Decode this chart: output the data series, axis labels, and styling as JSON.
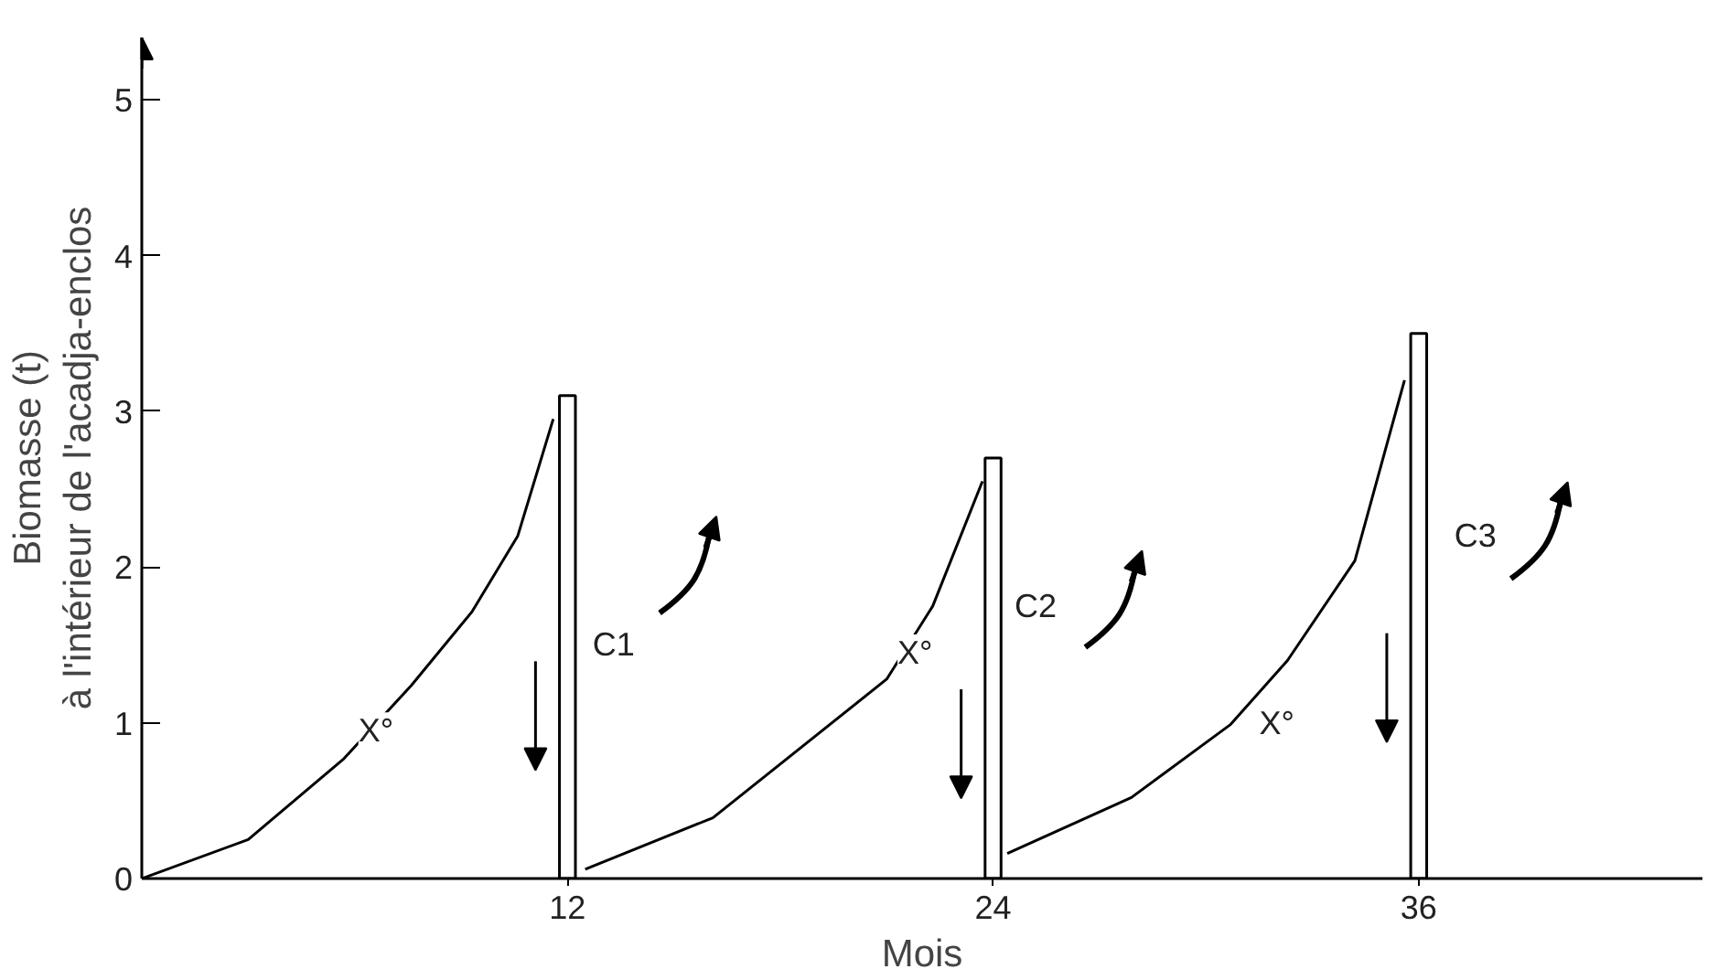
{
  "chart_data": {
    "type": "line",
    "xlabel": "Mois",
    "ylabel": "Biomasse (t)\nà l'intérieur de l'acadja-enclos",
    "series": [
      {
        "color": "#000000",
        "x": [
          0,
          3,
          5.7,
          7.6,
          9.3,
          10.6,
          11.6
        ],
        "values": [
          0,
          0.25,
          0.77,
          1.24,
          1.71,
          2.2,
          2.95
        ]
      },
      {
        "color": "#000000",
        "x": [
          12.5,
          16.1,
          21.0,
          22.3,
          23.7
        ],
        "values": [
          0.06,
          0.39,
          1.28,
          1.75,
          2.55
        ]
      },
      {
        "color": "#000000",
        "x": [
          24.4,
          27.9,
          30.7,
          32.3,
          34.2,
          35.6
        ],
        "values": [
          0.16,
          0.52,
          0.99,
          1.4,
          2.04,
          3.2
        ]
      },
      {
        "type": "bar",
        "color": "#ffffff",
        "x": [
          12,
          24,
          36
        ],
        "values": [
          3.1,
          2.7,
          3.5
        ]
      }
    ],
    "annotations": [
      {
        "text": "X°",
        "x": 6.6,
        "y": 0.95
      },
      {
        "text": "X°",
        "x": 21.8,
        "y": 1.45
      },
      {
        "text": "X°",
        "x": 32.0,
        "y": 1.0
      },
      {
        "text": "C1",
        "x": 13.3,
        "y": 1.5
      },
      {
        "text": "C2",
        "x": 25.2,
        "y": 1.75
      },
      {
        "text": "C3",
        "x": 37.6,
        "y": 2.2
      }
    ],
    "xlim": [
      0,
      44
    ],
    "ylim": [
      0,
      5.4
    ],
    "xticks": [
      12,
      24,
      36
    ],
    "yticks": [
      0,
      1,
      2,
      3,
      4,
      5
    ],
    "grid": false
  }
}
